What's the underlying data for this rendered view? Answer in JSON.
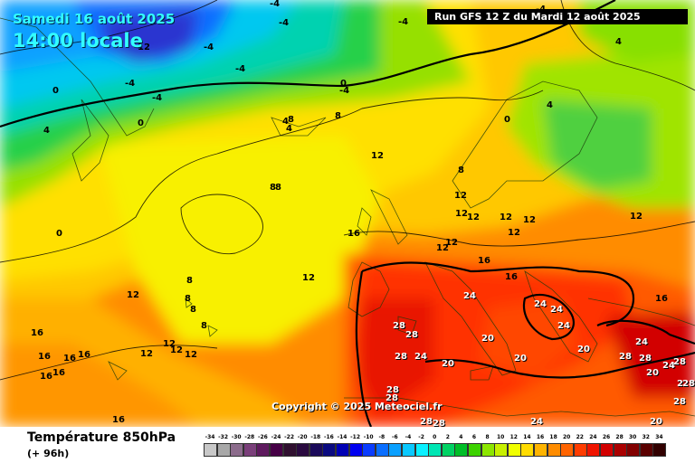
{
  "header": {
    "date": "Samedi 16 août 2025",
    "local_time": "14:00 locale",
    "run": "Run GFS 12 Z du Mardi 12 août 2025"
  },
  "footer": {
    "parameter": "Température 850hPa",
    "lead": "(+ 96h)",
    "copyright": "Copyright © 2025 Meteociel.fr"
  },
  "legend": {
    "values": [
      "-34",
      "-32",
      "-30",
      "-28",
      "-26",
      "-24",
      "-22",
      "-20",
      "-18",
      "-16",
      "-14",
      "-12",
      "-10",
      "-8",
      "-6",
      "-4",
      "-2",
      "0",
      "2",
      "4",
      "6",
      "8",
      "10",
      "12",
      "14",
      "16",
      "18",
      "20",
      "22",
      "24",
      "26",
      "28",
      "30",
      "32",
      "34"
    ],
    "colors": [
      "#c8c8c8",
      "#a8a8a8",
      "#8c6c8c",
      "#7a3f7a",
      "#5e1a5e",
      "#460046",
      "#301030",
      "#2a0a40",
      "#1a0a5a",
      "#0a0a80",
      "#0000b4",
      "#0000f0",
      "#0a3cff",
      "#0a6eff",
      "#0aa0ff",
      "#0ac8ff",
      "#0af0ff",
      "#00e6b4",
      "#00d264",
      "#00be28",
      "#3cd200",
      "#8ce600",
      "#c8f000",
      "#f0ff00",
      "#ffdc00",
      "#ffb400",
      "#ff8c00",
      "#ff6400",
      "#ff3c00",
      "#f01400",
      "#d20000",
      "#aa0000",
      "#820000",
      "#5a0000",
      "#320000"
    ]
  },
  "isotherm_labels": [
    "-4",
    "-4",
    "-4",
    "-4",
    "-4",
    "-4",
    "-4",
    "-4",
    "-4",
    "4",
    "4",
    "4",
    "4",
    "4",
    "0",
    "0",
    "0",
    "0",
    "0",
    "12",
    "12",
    "8",
    "8",
    "8",
    "8",
    "8",
    "8",
    "8",
    "8",
    "8",
    "12",
    "12",
    "12",
    "12",
    "12",
    "12",
    "12",
    "12",
    "12",
    "12",
    "12",
    "12",
    "12",
    "12",
    "12",
    "16",
    "16",
    "16",
    "16",
    "16",
    "16",
    "16",
    "16",
    "16",
    "16",
    "16",
    "24",
    "24",
    "24",
    "24",
    "24",
    "24",
    "24",
    "24",
    "28",
    "28",
    "28",
    "28",
    "28",
    "28",
    "28",
    "28",
    "28",
    "28",
    "28",
    "28",
    "20",
    "20",
    "20",
    "20",
    "20",
    "20",
    "2"
  ]
}
